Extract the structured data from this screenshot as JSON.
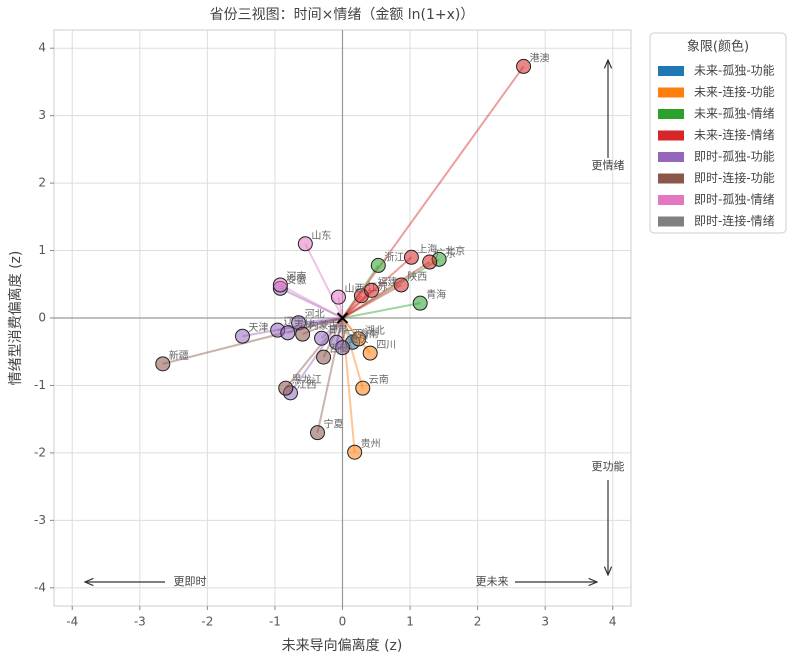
{
  "chart_data": {
    "type": "scatter",
    "title": "省份三视图：时间×情绪（金额 ln(1+x)）",
    "x_label": "未来导向偏离度 (z)",
    "y_label": "情绪型消费偏离度 (z)",
    "xlim": [
      -4.27,
      4.27
    ],
    "ylim": [
      -4.27,
      4.27
    ],
    "xticks": [
      -4,
      -3,
      -2,
      -1,
      0,
      1,
      2,
      3,
      4
    ],
    "yticks": [
      -4,
      -3,
      -2,
      -1,
      0,
      1,
      2,
      3,
      4
    ],
    "grid": true,
    "legend_title": "象限(颜色)",
    "legend_position": "outside-right",
    "annotations": [
      "更情绪",
      "更功能",
      "更即时",
      "更未来"
    ],
    "series": [
      {
        "name": "未来-孤独-功能",
        "color": "#1f77b4",
        "labels": [
          "海南"
        ],
        "x": [
          0.15
        ],
        "values": [
          -0.36
        ]
      },
      {
        "name": "未来-连接-功能",
        "color": "#ff7f0e",
        "labels": [
          "湖北",
          "四川",
          "云南",
          "贵州"
        ],
        "x": [
          0.24,
          0.41,
          0.3,
          0.18
        ],
        "values": [
          -0.31,
          -0.52,
          -1.04,
          -1.99
        ]
      },
      {
        "name": "未来-孤独-情绪",
        "color": "#2ca02c",
        "labels": [
          "北京",
          "浙江",
          "青海"
        ],
        "x": [
          1.43,
          0.53,
          1.15
        ],
        "values": [
          0.87,
          0.78,
          0.22
        ]
      },
      {
        "name": "未来-连接-情绪",
        "color": "#d62728",
        "labels": [
          "港澳",
          "上海",
          "广东",
          "陕西",
          "江苏",
          "福建"
        ],
        "x": [
          2.68,
          1.02,
          1.29,
          0.87,
          0.28,
          0.43
        ],
        "values": [
          3.73,
          0.9,
          0.83,
          0.49,
          0.33,
          0.41
        ]
      },
      {
        "name": "即时-孤独-功能",
        "color": "#9467bd",
        "labels": [
          "安徽",
          "天津",
          "河北",
          "辽宁",
          "吉林",
          "甘肃",
          "广西",
          "重庆",
          "江西"
        ],
        "x": [
          -0.92,
          -1.48,
          -0.65,
          -0.96,
          -0.81,
          -0.31,
          -0.09,
          0.0,
          -0.77
        ],
        "values": [
          0.44,
          -0.27,
          -0.07,
          -0.18,
          -0.22,
          -0.3,
          -0.36,
          -0.44,
          -1.11
        ]
      },
      {
        "name": "即时-连接-功能",
        "color": "#8c564b",
        "labels": [
          "内蒙古",
          "西藏",
          "新疆",
          "黑龙江",
          "宁夏"
        ],
        "x": [
          -0.59,
          -0.28,
          -2.66,
          -0.84,
          -0.37
        ],
        "values": [
          -0.24,
          -0.58,
          -0.68,
          -1.04,
          -1.7
        ]
      },
      {
        "name": "即时-孤独-情绪",
        "color": "#e377c2",
        "labels": [
          "山东",
          "河南",
          "山西"
        ],
        "x": [
          -0.55,
          -0.92,
          -0.06
        ],
        "values": [
          1.1,
          0.49,
          0.31
        ]
      },
      {
        "name": "即时-连接-情绪",
        "color": "#7f7f7f",
        "labels": [],
        "x": [],
        "values": []
      }
    ]
  }
}
